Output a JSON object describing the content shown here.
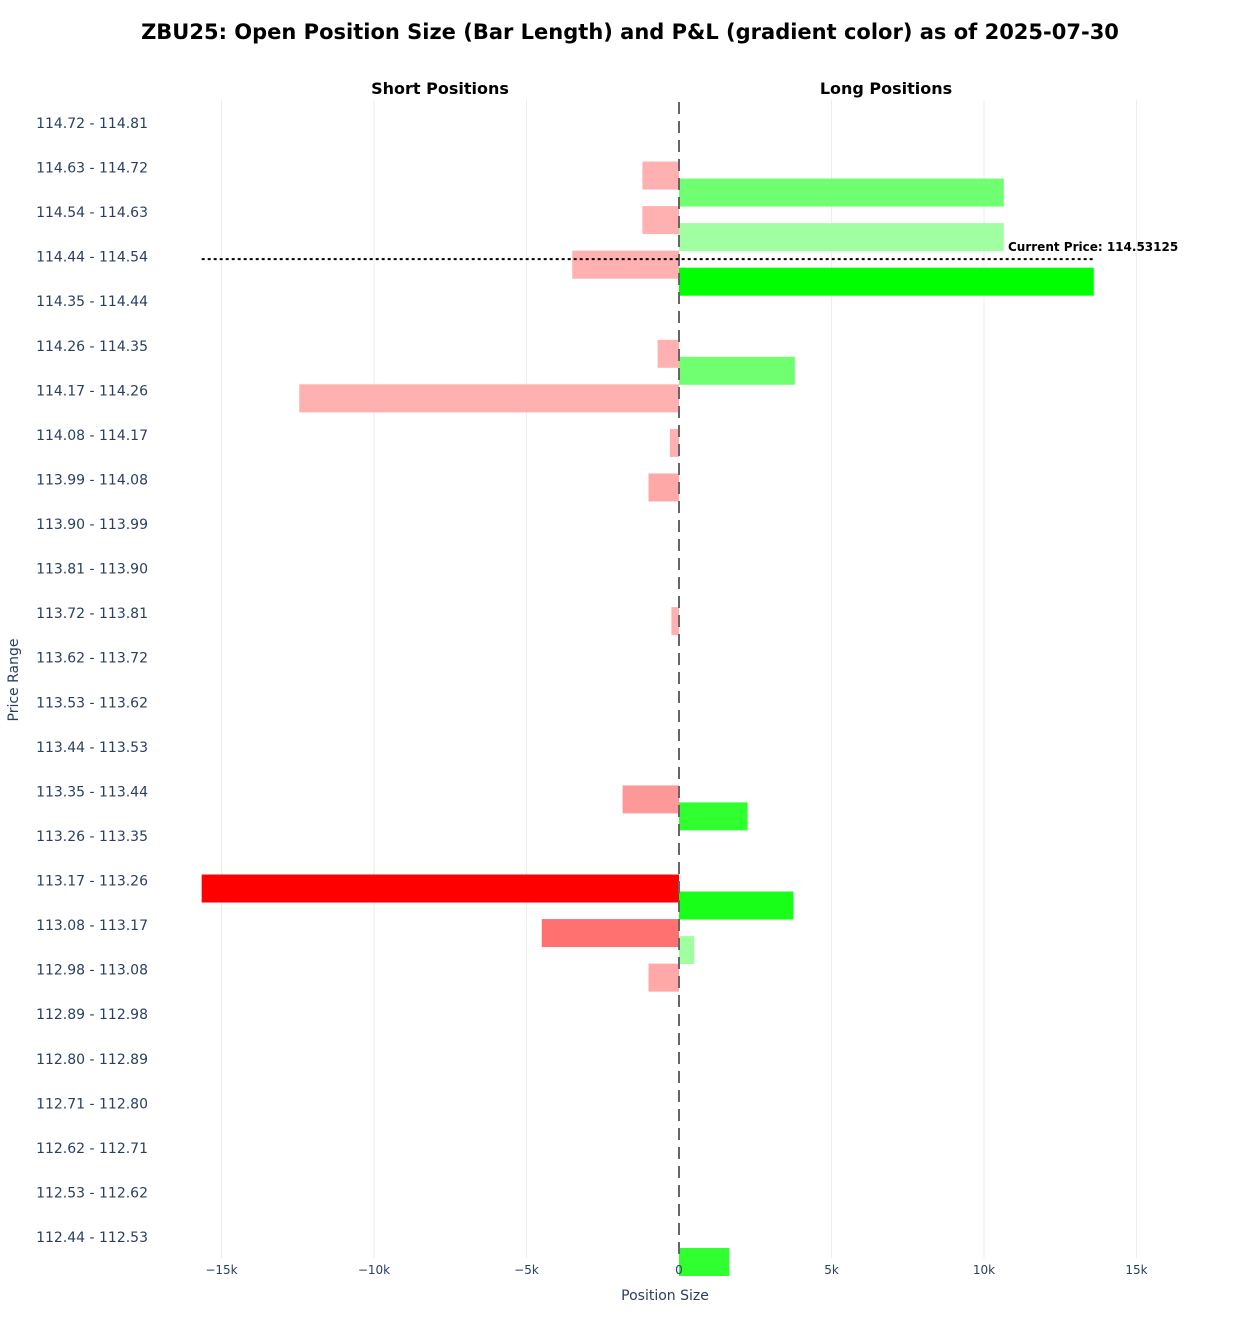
{
  "chart_data": {
    "type": "bar",
    "orientation": "horizontal",
    "title": "ZBU25: Open Position Size (Bar Length) and P&L (gradient color) as of 2025-07-30",
    "subplot_titles": [
      "Short Positions",
      "Long Positions"
    ],
    "xlabel": "Position Size",
    "ylabel": "Price Range",
    "xlim": [
      -17000,
      17000
    ],
    "x_ticks": [
      -15000,
      -10000,
      -5000,
      0,
      5000,
      10000,
      15000
    ],
    "x_tick_labels": [
      "−15k",
      "−10k",
      "−5k",
      "0",
      "5k",
      "10k",
      "15k"
    ],
    "grid": true,
    "current_price": {
      "label": "Current Price: 114.53125",
      "category": "114.44 - 114.54",
      "value": 114.53125
    },
    "categories": [
      "114.72 - 114.81",
      "114.63 - 114.72",
      "114.54 - 114.63",
      "114.44 - 114.54",
      "114.35 - 114.44",
      "114.26 - 114.35",
      "114.17 - 114.26",
      "114.08 - 114.17",
      "113.99 - 114.08",
      "113.90 - 113.99",
      "113.81 - 113.90",
      "113.72 - 113.81",
      "113.62 - 113.72",
      "113.53 - 113.62",
      "113.44 - 113.53",
      "113.35 - 113.44",
      "113.26 - 113.35",
      "113.17 - 113.26",
      "113.08 - 113.17",
      "112.98 - 113.08",
      "112.89 - 112.98",
      "112.80 - 112.89",
      "112.71 - 112.80",
      "112.62 - 112.71",
      "112.53 - 112.62",
      "112.44 - 112.53"
    ],
    "series": [
      {
        "values": [
          0,
          -1200,
          -1200,
          -3500,
          0,
          -700,
          -12450,
          -300,
          -1000,
          0,
          0,
          -250,
          0,
          0,
          0,
          -1850,
          0,
          -15650,
          -4500,
          -1000,
          0,
          0,
          0,
          0,
          0,
          0
        ],
        "colors": [
          "#ffb0b0",
          "#ffb0b0",
          "#ffb0b0",
          "#ffb0b0",
          "#ffb0b0",
          "#ffb0b0",
          "#ffb0b0",
          "#ffb0b0",
          "#ffa8a8",
          "#ffb0b0",
          "#ffb0b0",
          "#ffb0b0",
          "#ffb0b0",
          "#ffb0b0",
          "#ffb0b0",
          "#ff9898",
          "#ffb0b0",
          "#ff0000",
          "#ff7070",
          "#ffa8a8",
          "#ffb0b0",
          "#ffb0b0",
          "#ffb0b0",
          "#ffb0b0",
          "#ffb0b0",
          "#ffb0b0"
        ]
      },
      {
        "values": [
          0,
          10650,
          10650,
          13600,
          0,
          3800,
          0,
          0,
          0,
          0,
          0,
          0,
          0,
          0,
          0,
          2250,
          0,
          3750,
          500,
          0,
          0,
          0,
          0,
          0,
          0,
          1650
        ],
        "colors": [
          "#70ff70",
          "#70ff70",
          "#a0ffa0",
          "#00ff00",
          "#70ff70",
          "#70ff70",
          "#70ff70",
          "#70ff70",
          "#70ff70",
          "#70ff70",
          "#70ff70",
          "#70ff70",
          "#70ff70",
          "#70ff70",
          "#70ff70",
          "#30ff30",
          "#70ff70",
          "#18ff18",
          "#a0ffa0",
          "#70ff70",
          "#70ff70",
          "#70ff70",
          "#70ff70",
          "#70ff70",
          "#70ff70",
          "#30ff30"
        ]
      }
    ]
  }
}
